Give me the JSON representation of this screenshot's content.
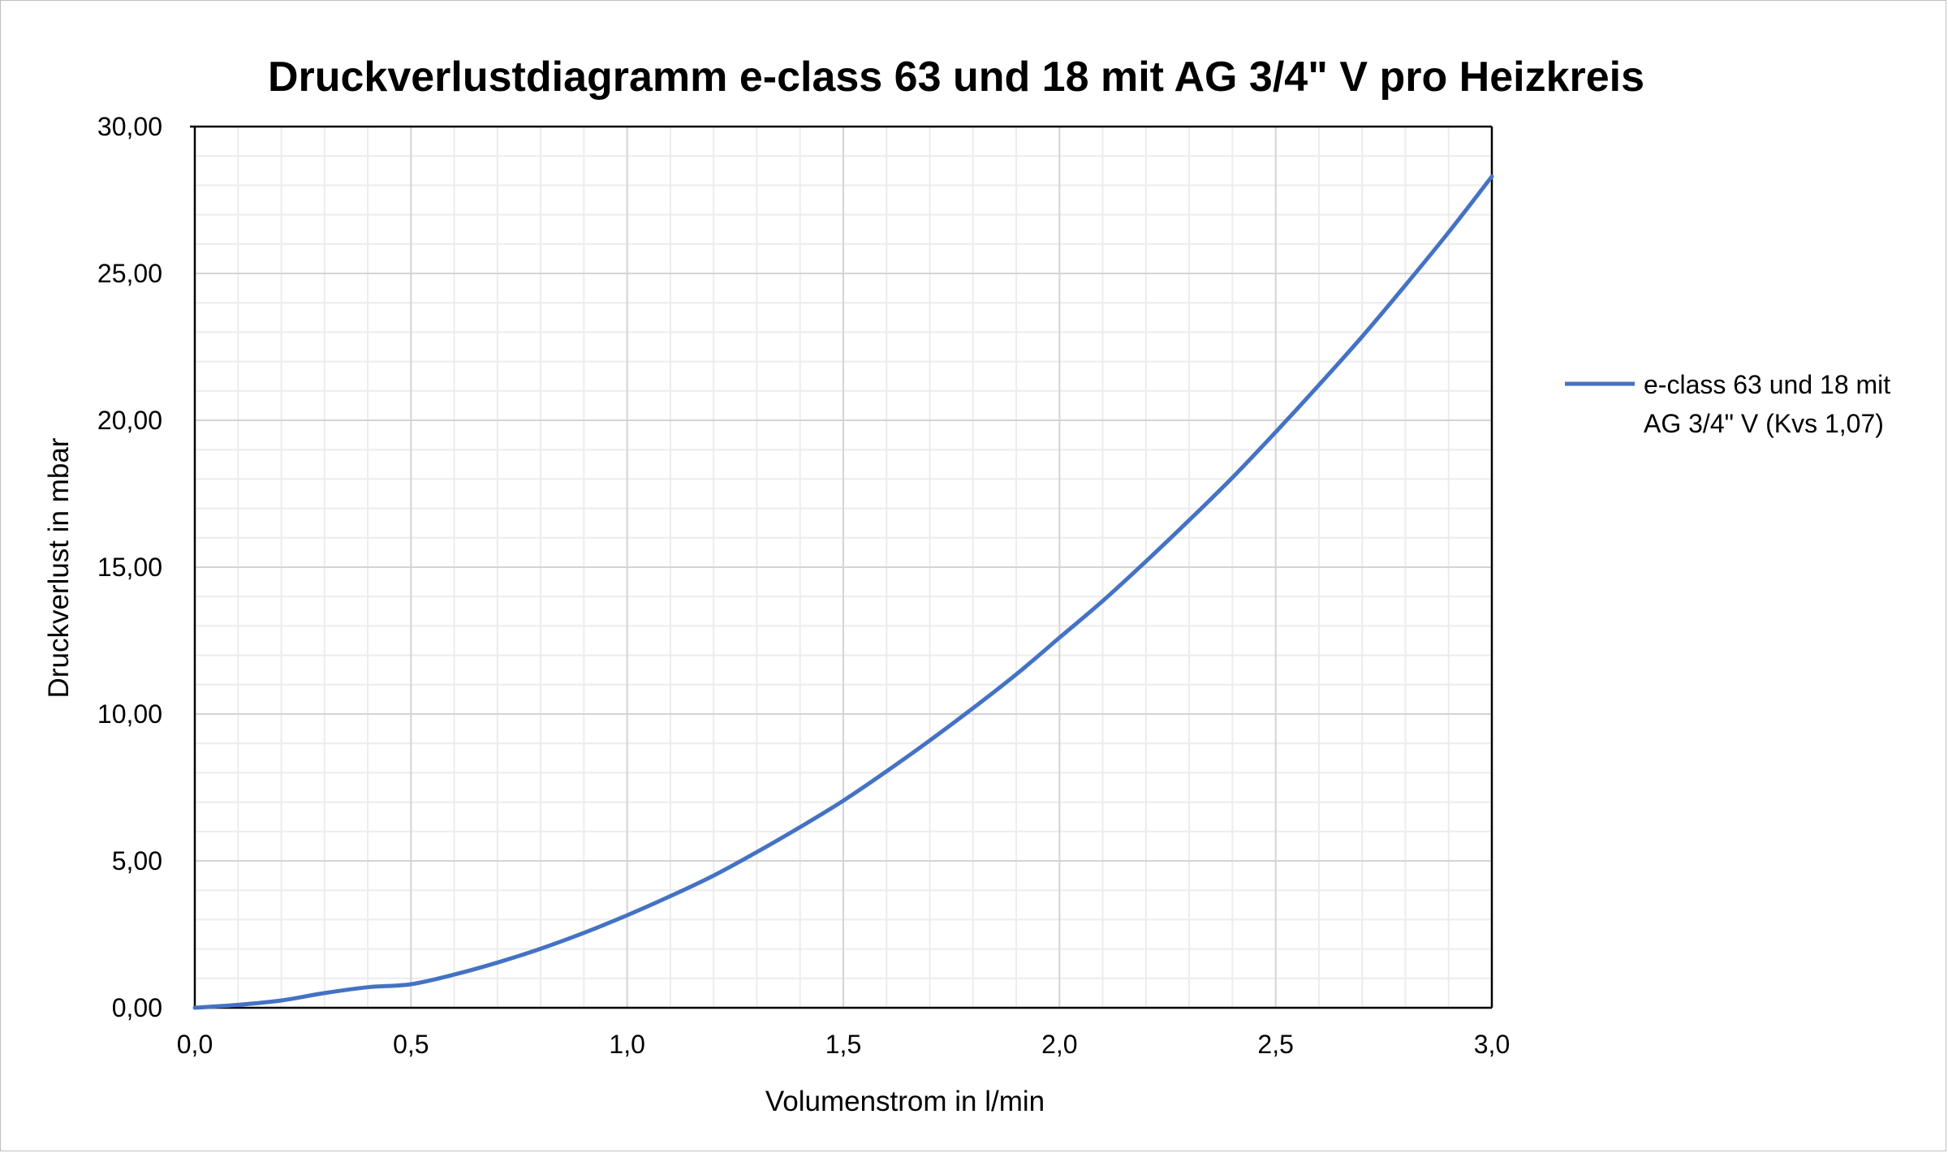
{
  "chart_data": {
    "type": "line",
    "title": "Druckverlustdiagramm e-class 63 und 18 mit AG 3/4\" V pro Heizkreis",
    "xlabel": "Volumenstrom in l/min",
    "ylabel": "Druckverlust in mbar",
    "xlim": [
      0,
      3.0
    ],
    "ylim": [
      0,
      30
    ],
    "x_ticks": [
      "0,0",
      "0,5",
      "1,0",
      "1,5",
      "2,0",
      "2,5",
      "3,0"
    ],
    "y_ticks": [
      "0,00",
      "5,00",
      "10,00",
      "15,00",
      "20,00",
      "25,00",
      "30,00"
    ],
    "grid": true,
    "legend_position": "right",
    "series": [
      {
        "name": "e-class 63 und 18 mit AG 3/4\" V (Kvs 1,07)",
        "color": "#4472c4",
        "x": [
          0.0,
          0.1,
          0.2,
          0.3,
          0.4,
          0.5,
          0.6,
          0.7,
          0.8,
          0.9,
          1.0,
          1.1,
          1.2,
          1.3,
          1.4,
          1.5,
          1.6,
          1.7,
          1.8,
          1.9,
          2.0,
          2.1,
          2.2,
          2.3,
          2.4,
          2.5,
          2.6,
          2.7,
          2.8,
          2.9,
          3.0
        ],
        "y": [
          0.0,
          0.1,
          0.25,
          0.5,
          0.7,
          0.8,
          1.13,
          1.54,
          2.01,
          2.55,
          3.15,
          3.8,
          4.5,
          5.3,
          6.15,
          7.05,
          8.05,
          9.1,
          10.2,
          11.35,
          12.6,
          13.85,
          15.2,
          16.6,
          18.05,
          19.6,
          21.2,
          22.85,
          24.6,
          26.4,
          28.3
        ]
      }
    ]
  }
}
